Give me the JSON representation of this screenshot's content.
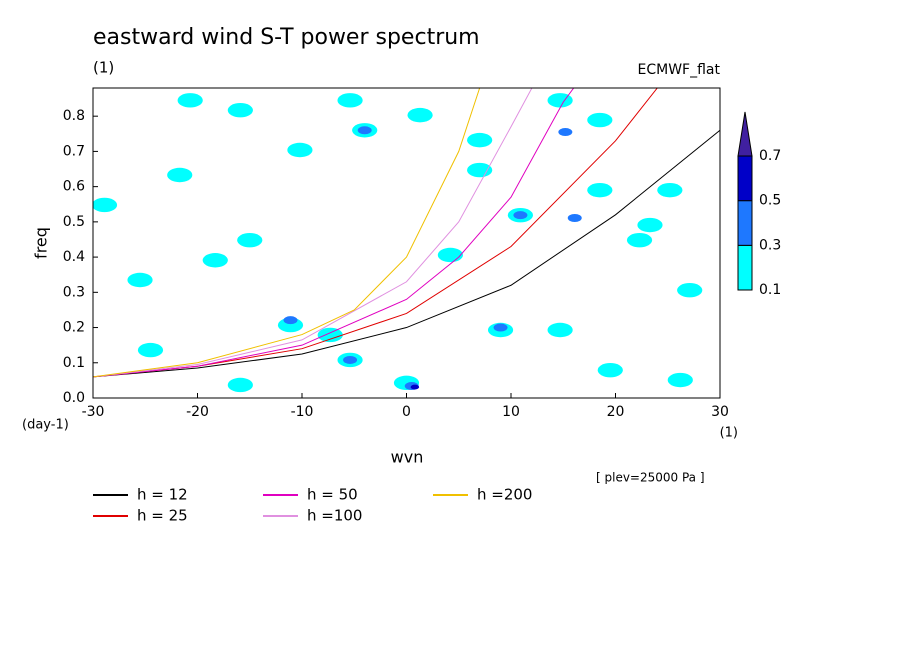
{
  "chart_data": {
    "type": "spectrum",
    "title": "eastward wind S-T power spectrum",
    "subtitle": "(1)",
    "source_label": "ECMWF_flat",
    "x_label": "wvn",
    "y_label": "freq",
    "y_unit": "(day-1)",
    "x_unit": "(1)",
    "annotation": "[ plev=25000 Pa ]",
    "xlim": [
      -30,
      30
    ],
    "ylim": [
      0,
      0.88
    ],
    "xticks": [
      -30,
      -20,
      -10,
      0,
      10,
      20,
      30
    ],
    "yticks": [
      {
        "value": 0,
        "label": "0.0"
      },
      0.1,
      0.2,
      0.3,
      0.4,
      0.5,
      0.6,
      0.7,
      0.8
    ],
    "series": [
      {
        "name": "h = 12",
        "color": "#000000",
        "x": [
          -30,
          -20,
          -10,
          0,
          10,
          20,
          30
        ],
        "values": [
          0.06,
          0.085,
          0.125,
          0.2,
          0.32,
          0.52,
          0.76
        ]
      },
      {
        "name": "h = 25",
        "color": "#e00000",
        "x": [
          -30,
          -20,
          -10,
          0,
          10,
          20,
          24
        ],
        "values": [
          0.06,
          0.09,
          0.14,
          0.24,
          0.43,
          0.73,
          0.88
        ]
      },
      {
        "name": "h = 50",
        "color": "#e000c0",
        "x": [
          -30,
          -20,
          -10,
          0,
          5,
          10,
          15,
          16
        ],
        "values": [
          0.06,
          0.09,
          0.15,
          0.28,
          0.4,
          0.57,
          0.84,
          0.88
        ]
      },
      {
        "name": "h =100",
        "color": "#e090e0",
        "x": [
          -30,
          -20,
          -10,
          0,
          5,
          10,
          12
        ],
        "values": [
          0.06,
          0.095,
          0.165,
          0.33,
          0.5,
          0.77,
          0.88
        ]
      },
      {
        "name": "h =200",
        "color": "#f0c000",
        "x": [
          -30,
          -20,
          -10,
          -5,
          0,
          5,
          7
        ],
        "values": [
          0.06,
          0.1,
          0.18,
          0.25,
          0.4,
          0.7,
          0.88
        ]
      }
    ],
    "colorbar": {
      "levels": [
        0.1,
        0.3,
        0.5,
        0.7
      ],
      "colors": [
        "#00ffff",
        "#1e78ff",
        "#0000c8",
        "#4020a0"
      ]
    },
    "contours": [
      {
        "x": -28.9,
        "y": 0.548,
        "level": 0.1
      },
      {
        "x": -21.7,
        "y": 0.633,
        "level": 0.1
      },
      {
        "x": -18.3,
        "y": 0.391,
        "level": 0.1
      },
      {
        "x": -11.1,
        "y": 0.207,
        "level": 0.1
      },
      {
        "x": -7.3,
        "y": 0.179,
        "level": 0.1
      },
      {
        "x": -5.4,
        "y": 0.108,
        "level": 0.1
      },
      {
        "x": 0.0,
        "y": 0.043,
        "level": 0.1
      },
      {
        "x": -5.4,
        "y": 0.845,
        "level": 0.1
      },
      {
        "x": -4.0,
        "y": 0.76,
        "level": 0.1
      },
      {
        "x": -24.5,
        "y": 0.136,
        "level": 0.1
      },
      {
        "x": 14.7,
        "y": 0.193,
        "level": 0.1
      },
      {
        "x": 9.0,
        "y": 0.193,
        "level": 0.1
      },
      {
        "x": 22.3,
        "y": 0.448,
        "level": 0.1
      },
      {
        "x": 23.3,
        "y": 0.491,
        "level": 0.1
      },
      {
        "x": 25.2,
        "y": 0.59,
        "level": 0.1
      },
      {
        "x": 18.5,
        "y": 0.59,
        "level": 0.1
      },
      {
        "x": 10.9,
        "y": 0.519,
        "level": 0.1
      },
      {
        "x": 7.0,
        "y": 0.732,
        "level": 0.1
      },
      {
        "x": 7.0,
        "y": 0.647,
        "level": 0.1
      },
      {
        "x": 4.2,
        "y": 0.406,
        "level": 0.1
      },
      {
        "x": -15.0,
        "y": 0.448,
        "level": 0.1
      },
      {
        "x": -25.5,
        "y": 0.335,
        "level": 0.1
      },
      {
        "x": -15.9,
        "y": 0.817,
        "level": 0.1
      },
      {
        "x": -20.7,
        "y": 0.845,
        "level": 0.1
      },
      {
        "x": -10.2,
        "y": 0.704,
        "level": 0.1
      },
      {
        "x": 1.3,
        "y": 0.803,
        "level": 0.1
      },
      {
        "x": 14.7,
        "y": 0.845,
        "level": 0.1
      },
      {
        "x": 18.5,
        "y": 0.789,
        "level": 0.1
      },
      {
        "x": 27.1,
        "y": 0.306,
        "level": 0.1
      },
      {
        "x": 19.5,
        "y": 0.079,
        "level": 0.1
      },
      {
        "x": 26.2,
        "y": 0.051,
        "level": 0.1
      },
      {
        "x": -15.9,
        "y": 0.037,
        "level": 0.1
      },
      {
        "x": -11.1,
        "y": 0.221,
        "level": 0.3
      },
      {
        "x": -5.4,
        "y": 0.108,
        "level": 0.3
      },
      {
        "x": 0.5,
        "y": 0.034,
        "level": 0.3
      },
      {
        "x": 9.0,
        "y": 0.2,
        "level": 0.3
      },
      {
        "x": 15.2,
        "y": 0.755,
        "level": 0.3
      },
      {
        "x": 10.9,
        "y": 0.519,
        "level": 0.3
      },
      {
        "x": -4.0,
        "y": 0.76,
        "level": 0.3
      },
      {
        "x": 16.1,
        "y": 0.511,
        "level": 0.3
      },
      {
        "x": 0.8,
        "y": 0.031,
        "level": 0.5
      }
    ]
  }
}
